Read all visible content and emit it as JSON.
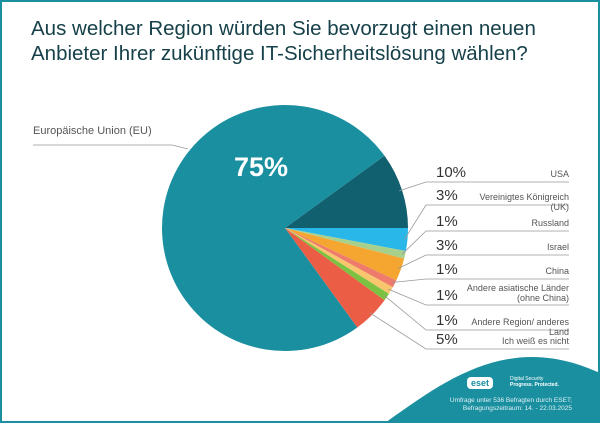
{
  "title": "Aus welcher Region würden Sie bevorzugt einen neuen Anbieter Ihrer zukünftige IT-Sicherheitslösung wählen?",
  "chart_data": {
    "type": "pie",
    "title": "Aus welcher Region würden Sie bevorzugt einen neuen Anbieter Ihrer zukünftige IT-Sicherheitslösung wählen?",
    "unit": "%",
    "slices": [
      {
        "label": "Europäische Union (EU)",
        "value": 75,
        "display": "75%",
        "color": "#1a8fa0"
      },
      {
        "label": "USA",
        "value": 10,
        "display": "10%",
        "color": "#11606f"
      },
      {
        "label": "Vereinigtes Königreich (UK)",
        "value": 3,
        "display": "3%",
        "color": "#29b6e8"
      },
      {
        "label": "Russland",
        "value": 1,
        "display": "1%",
        "color": "#a8d08d"
      },
      {
        "label": "Israel",
        "value": 3,
        "display": "3%",
        "color": "#f5a631"
      },
      {
        "label": "China",
        "value": 1,
        "display": "1%",
        "color": "#ee7b6b"
      },
      {
        "label": "Andere asiatische Länder (ohne China)",
        "value": 1,
        "display": "1%",
        "color": "#f8c66c"
      },
      {
        "label": "Andere Region/ anderes Land",
        "value": 1,
        "display": "1%",
        "color": "#7cc242"
      },
      {
        "label": "Ich weiß es nicht",
        "value": 5,
        "display": "5%",
        "color": "#ec5d45"
      }
    ]
  },
  "footer": {
    "logo": "eset",
    "tagline_1": "Digital Security",
    "tagline_2": "Progress. Protected.",
    "note_1": "Umfrage unter 536 Befragten durch ESET;",
    "note_2": "Befragungszeitraum: 14. - 22.03.2025"
  }
}
